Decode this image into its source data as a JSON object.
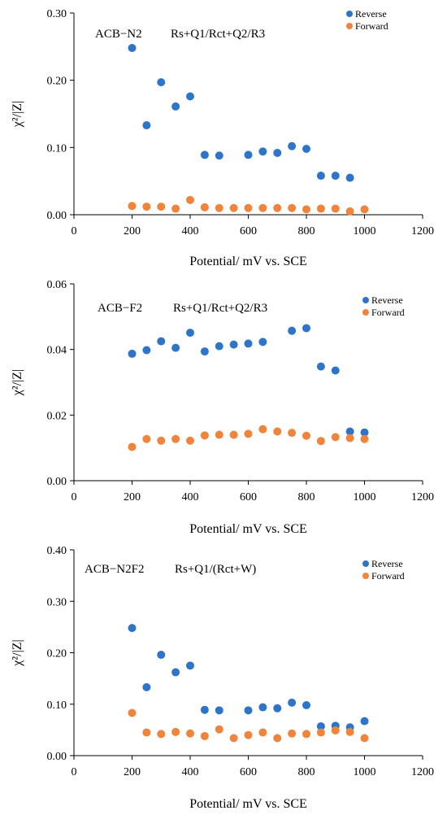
{
  "colors": {
    "reverse": "#2e75c9",
    "forward": "#f0843a"
  },
  "chart_data": [
    {
      "type": "scatter",
      "annotation_sample": "ACB−N2",
      "annotation_model": "Rs+Q1/Rct+Q2/R3",
      "xlabel": "Potential/ mV vs. SCE",
      "ylabel": "χ²/|Z|",
      "xlim": [
        0,
        1200
      ],
      "ylim": [
        0,
        0.3
      ],
      "xticks": [
        "0",
        "200",
        "400",
        "600",
        "800",
        "1000",
        "1200"
      ],
      "yticks": [
        "0.00",
        "0.10",
        "0.20",
        "0.30"
      ],
      "legend": [
        "Reverse",
        "Forward"
      ],
      "series": [
        {
          "name": "Reverse",
          "x": [
            200,
            250,
            300,
            350,
            400,
            450,
            500,
            600,
            650,
            700,
            750,
            800,
            850,
            900,
            950
          ],
          "y": [
            0.248,
            0.133,
            0.197,
            0.161,
            0.176,
            0.089,
            0.088,
            0.089,
            0.094,
            0.092,
            0.102,
            0.098,
            0.058,
            0.058,
            0.055
          ]
        },
        {
          "name": "Forward",
          "x": [
            200,
            250,
            300,
            350,
            400,
            450,
            500,
            550,
            600,
            650,
            700,
            750,
            800,
            850,
            900,
            950,
            1000
          ],
          "y": [
            0.013,
            0.012,
            0.012,
            0.009,
            0.022,
            0.011,
            0.01,
            0.01,
            0.01,
            0.01,
            0.01,
            0.01,
            0.008,
            0.009,
            0.009,
            0.005,
            0.008
          ]
        }
      ]
    },
    {
      "type": "scatter",
      "annotation_sample": "ACB−F2",
      "annotation_model": "Rs+Q1/Rct+Q2/R3",
      "xlabel": "Potential/ mV vs. SCE",
      "ylabel": "χ²/|Z|",
      "xlim": [
        0,
        1200
      ],
      "ylim": [
        0,
        0.06
      ],
      "xticks": [
        "0",
        "200",
        "400",
        "600",
        "800",
        "1000",
        "1200"
      ],
      "yticks": [
        "0.00",
        "0.02",
        "0.04",
        "0.06"
      ],
      "legend": [
        "Reverse",
        "Forward"
      ],
      "series": [
        {
          "name": "Reverse",
          "x": [
            200,
            250,
            300,
            350,
            400,
            450,
            500,
            550,
            600,
            650,
            750,
            800,
            850,
            900,
            950,
            1000
          ],
          "y": [
            0.0387,
            0.0398,
            0.0425,
            0.0405,
            0.0451,
            0.0394,
            0.041,
            0.0415,
            0.0418,
            0.0423,
            0.0457,
            0.0465,
            0.0348,
            0.0336,
            0.015,
            0.0147
          ]
        },
        {
          "name": "Forward",
          "x": [
            200,
            250,
            300,
            350,
            400,
            450,
            500,
            550,
            600,
            650,
            700,
            750,
            800,
            850,
            900,
            950,
            1000
          ],
          "y": [
            0.0103,
            0.0127,
            0.0122,
            0.0127,
            0.0122,
            0.0138,
            0.014,
            0.014,
            0.0143,
            0.0157,
            0.015,
            0.0146,
            0.0137,
            0.0121,
            0.0133,
            0.013,
            0.0127
          ]
        }
      ]
    },
    {
      "type": "scatter",
      "annotation_sample": "ACB−N2F2",
      "annotation_model": "Rs+Q1/(Rct+W)",
      "xlabel": "Potential/ mV vs. SCE",
      "ylabel": "χ²/|Z|",
      "xlim": [
        0,
        1200
      ],
      "ylim": [
        0,
        0.4
      ],
      "xticks": [
        "0",
        "200",
        "400",
        "600",
        "800",
        "1000",
        "1200"
      ],
      "yticks": [
        "0.00",
        "0.10",
        "0.20",
        "0.30",
        "0.40"
      ],
      "legend": [
        "Reverse",
        "Forward"
      ],
      "series": [
        {
          "name": "Reverse",
          "x": [
            200,
            250,
            300,
            350,
            400,
            450,
            500,
            600,
            650,
            700,
            750,
            800,
            850,
            900,
            950,
            1000
          ],
          "y": [
            0.248,
            0.133,
            0.196,
            0.162,
            0.175,
            0.089,
            0.088,
            0.088,
            0.094,
            0.092,
            0.103,
            0.098,
            0.057,
            0.058,
            0.055,
            0.067
          ]
        },
        {
          "name": "Forward",
          "x": [
            200,
            250,
            300,
            350,
            400,
            450,
            500,
            550,
            600,
            650,
            700,
            750,
            800,
            850,
            900,
            950,
            1000
          ],
          "y": [
            0.083,
            0.045,
            0.042,
            0.046,
            0.043,
            0.038,
            0.051,
            0.034,
            0.04,
            0.045,
            0.034,
            0.043,
            0.042,
            0.045,
            0.049,
            0.046,
            0.034
          ]
        }
      ]
    }
  ]
}
